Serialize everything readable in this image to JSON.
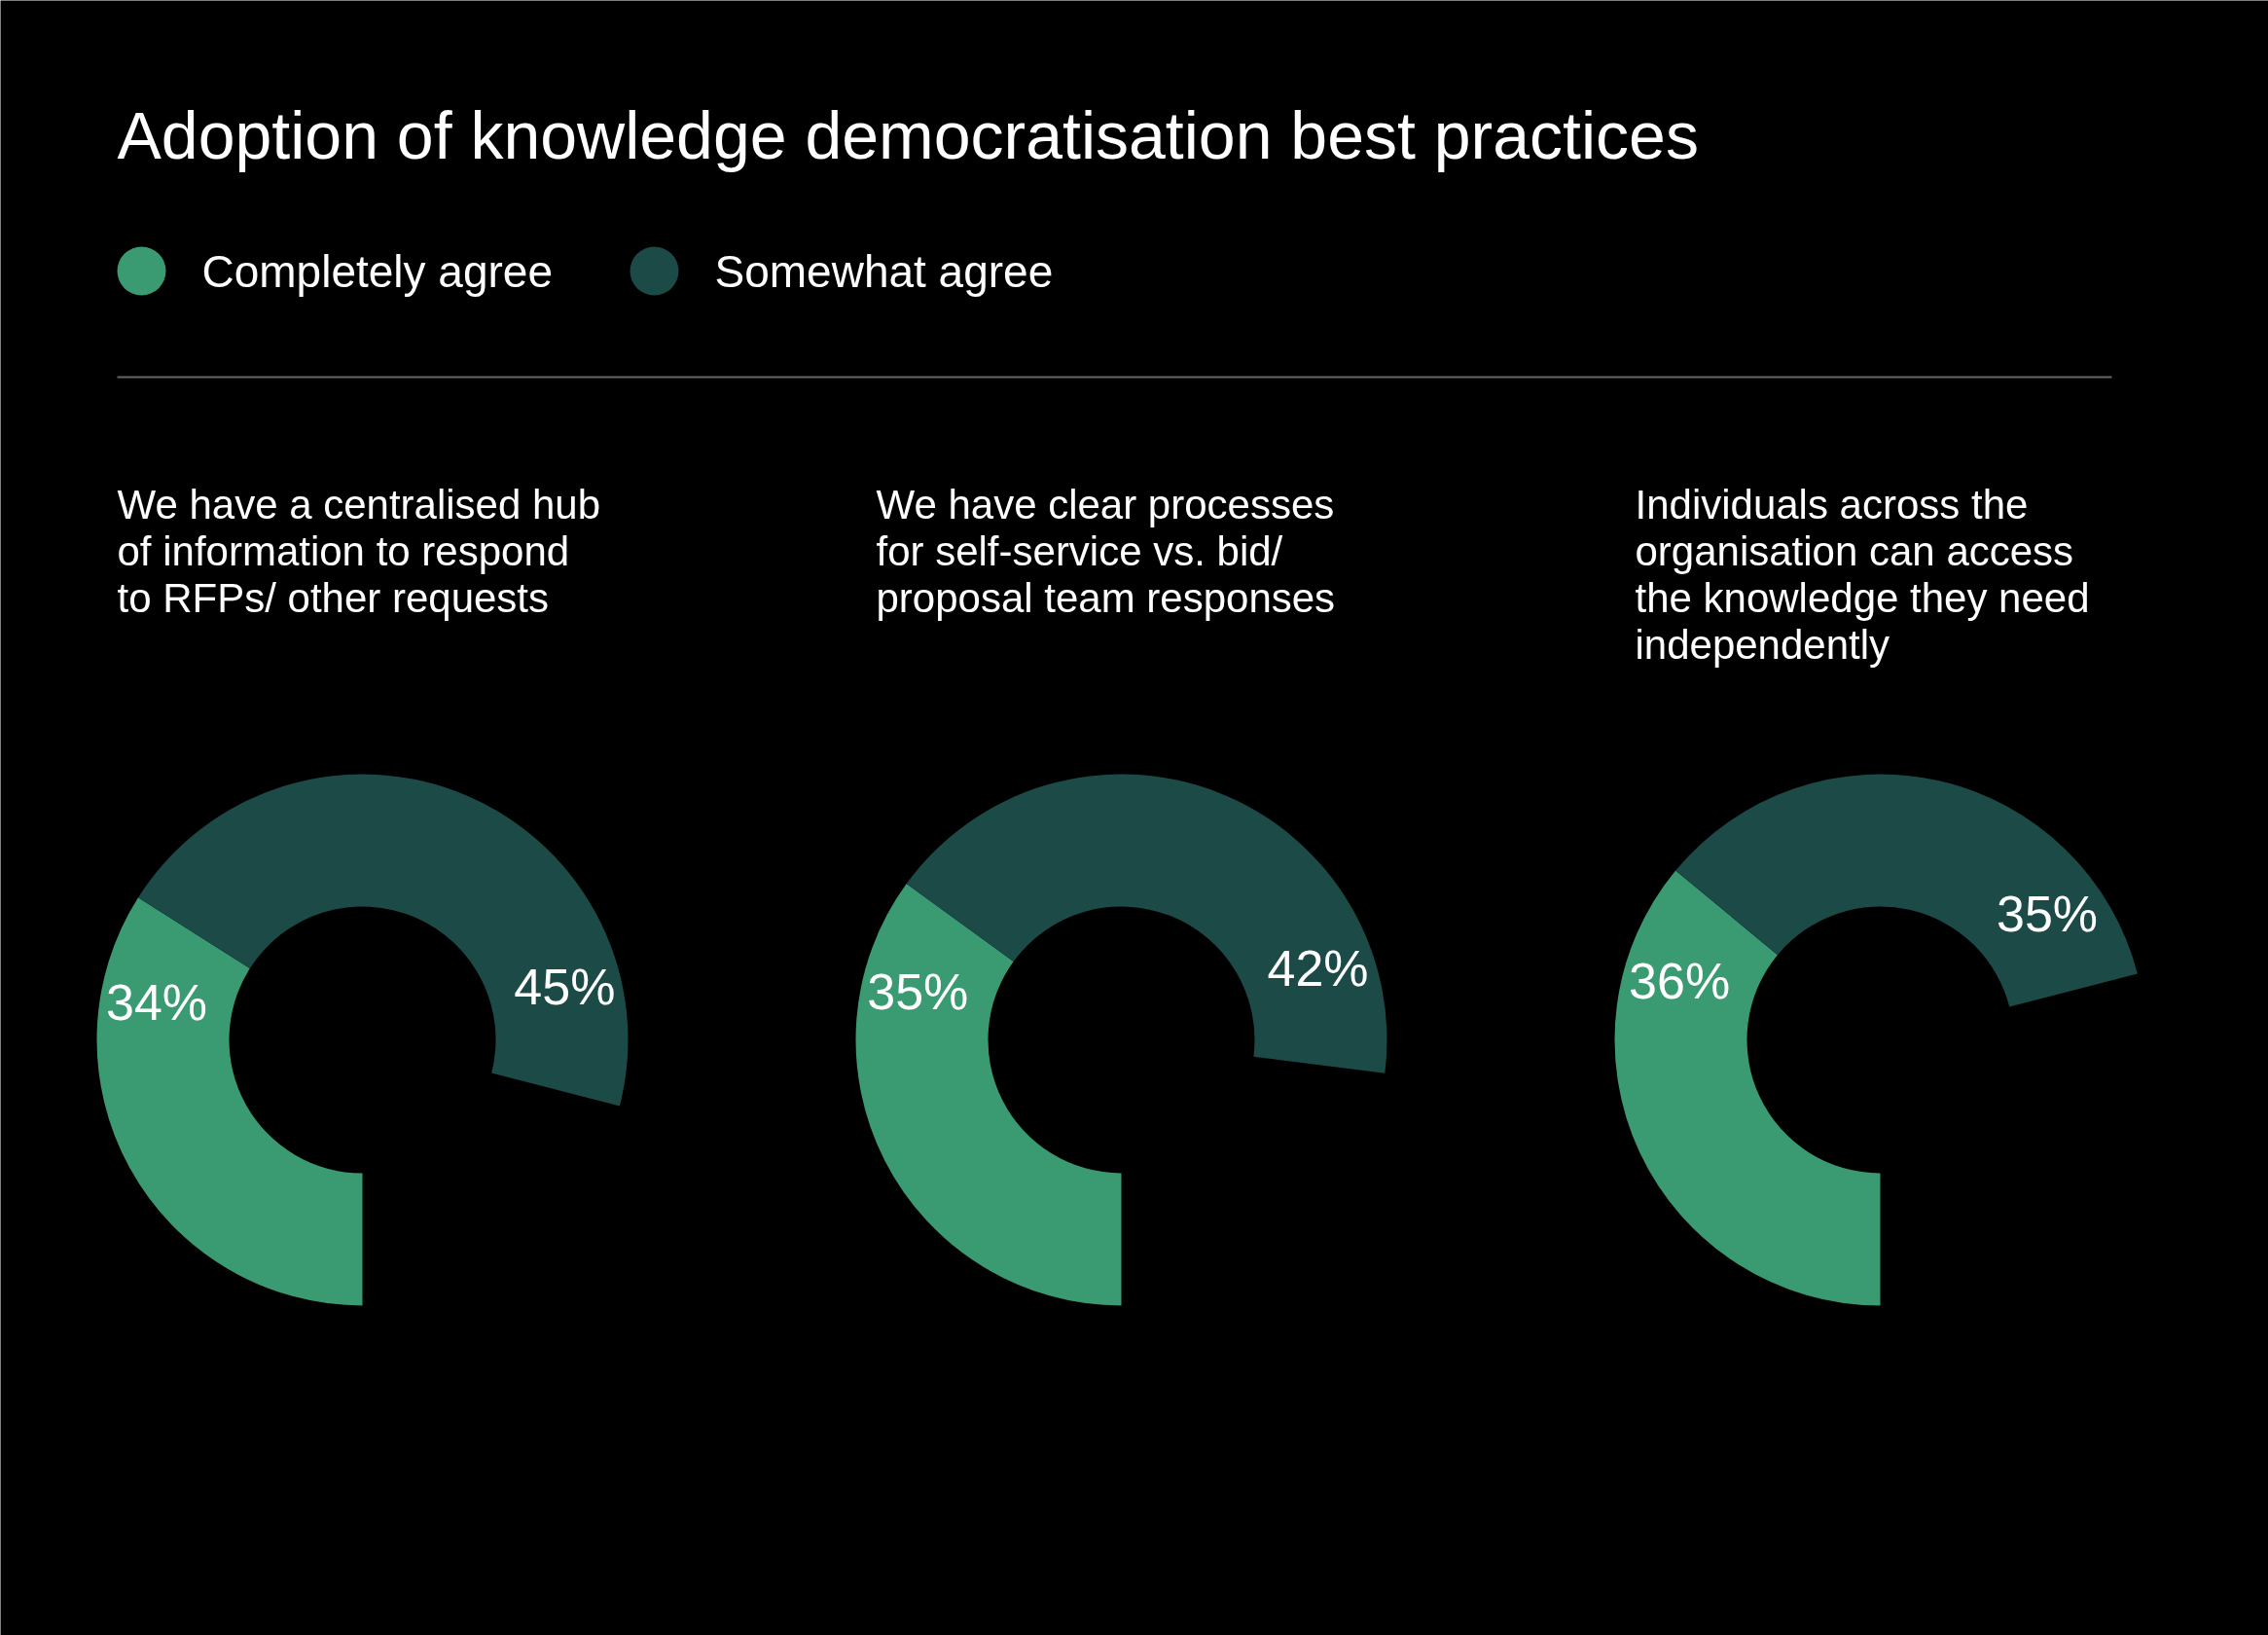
{
  "chart_data": [
    {
      "type": "donut",
      "title": "Adoption of knowledge democratisation best practices",
      "subtitle": "We have a centralised hub of information to respond to RFPs/ other requests",
      "categories": [
        "Completely agree",
        "Somewhat agree"
      ],
      "values": [
        34,
        45
      ],
      "value_labels": [
        "34%",
        "45%"
      ],
      "colors": [
        "#3a9a72",
        "#1b4a47"
      ],
      "legend": "top"
    },
    {
      "type": "donut",
      "subtitle": "We have clear processes for self-service vs. bid/ proposal team responses",
      "categories": [
        null,
        null
      ],
      "values": [
        35,
        42
      ],
      "value_labels": [
        "35%",
        "42%"
      ],
      "colors": [
        "#3a9a72",
        "#1b4a47"
      ]
    },
    {
      "type": "donut",
      "subtitle": "Individuals across the organisation can access the knowledge they need independently",
      "categories": [
        null,
        null
      ],
      "values": [
        36,
        35
      ],
      "value_labels": [
        "36%",
        "35%"
      ],
      "colors": [
        "#3a9a72",
        "#1b4a47"
      ]
    }
  ]
}
